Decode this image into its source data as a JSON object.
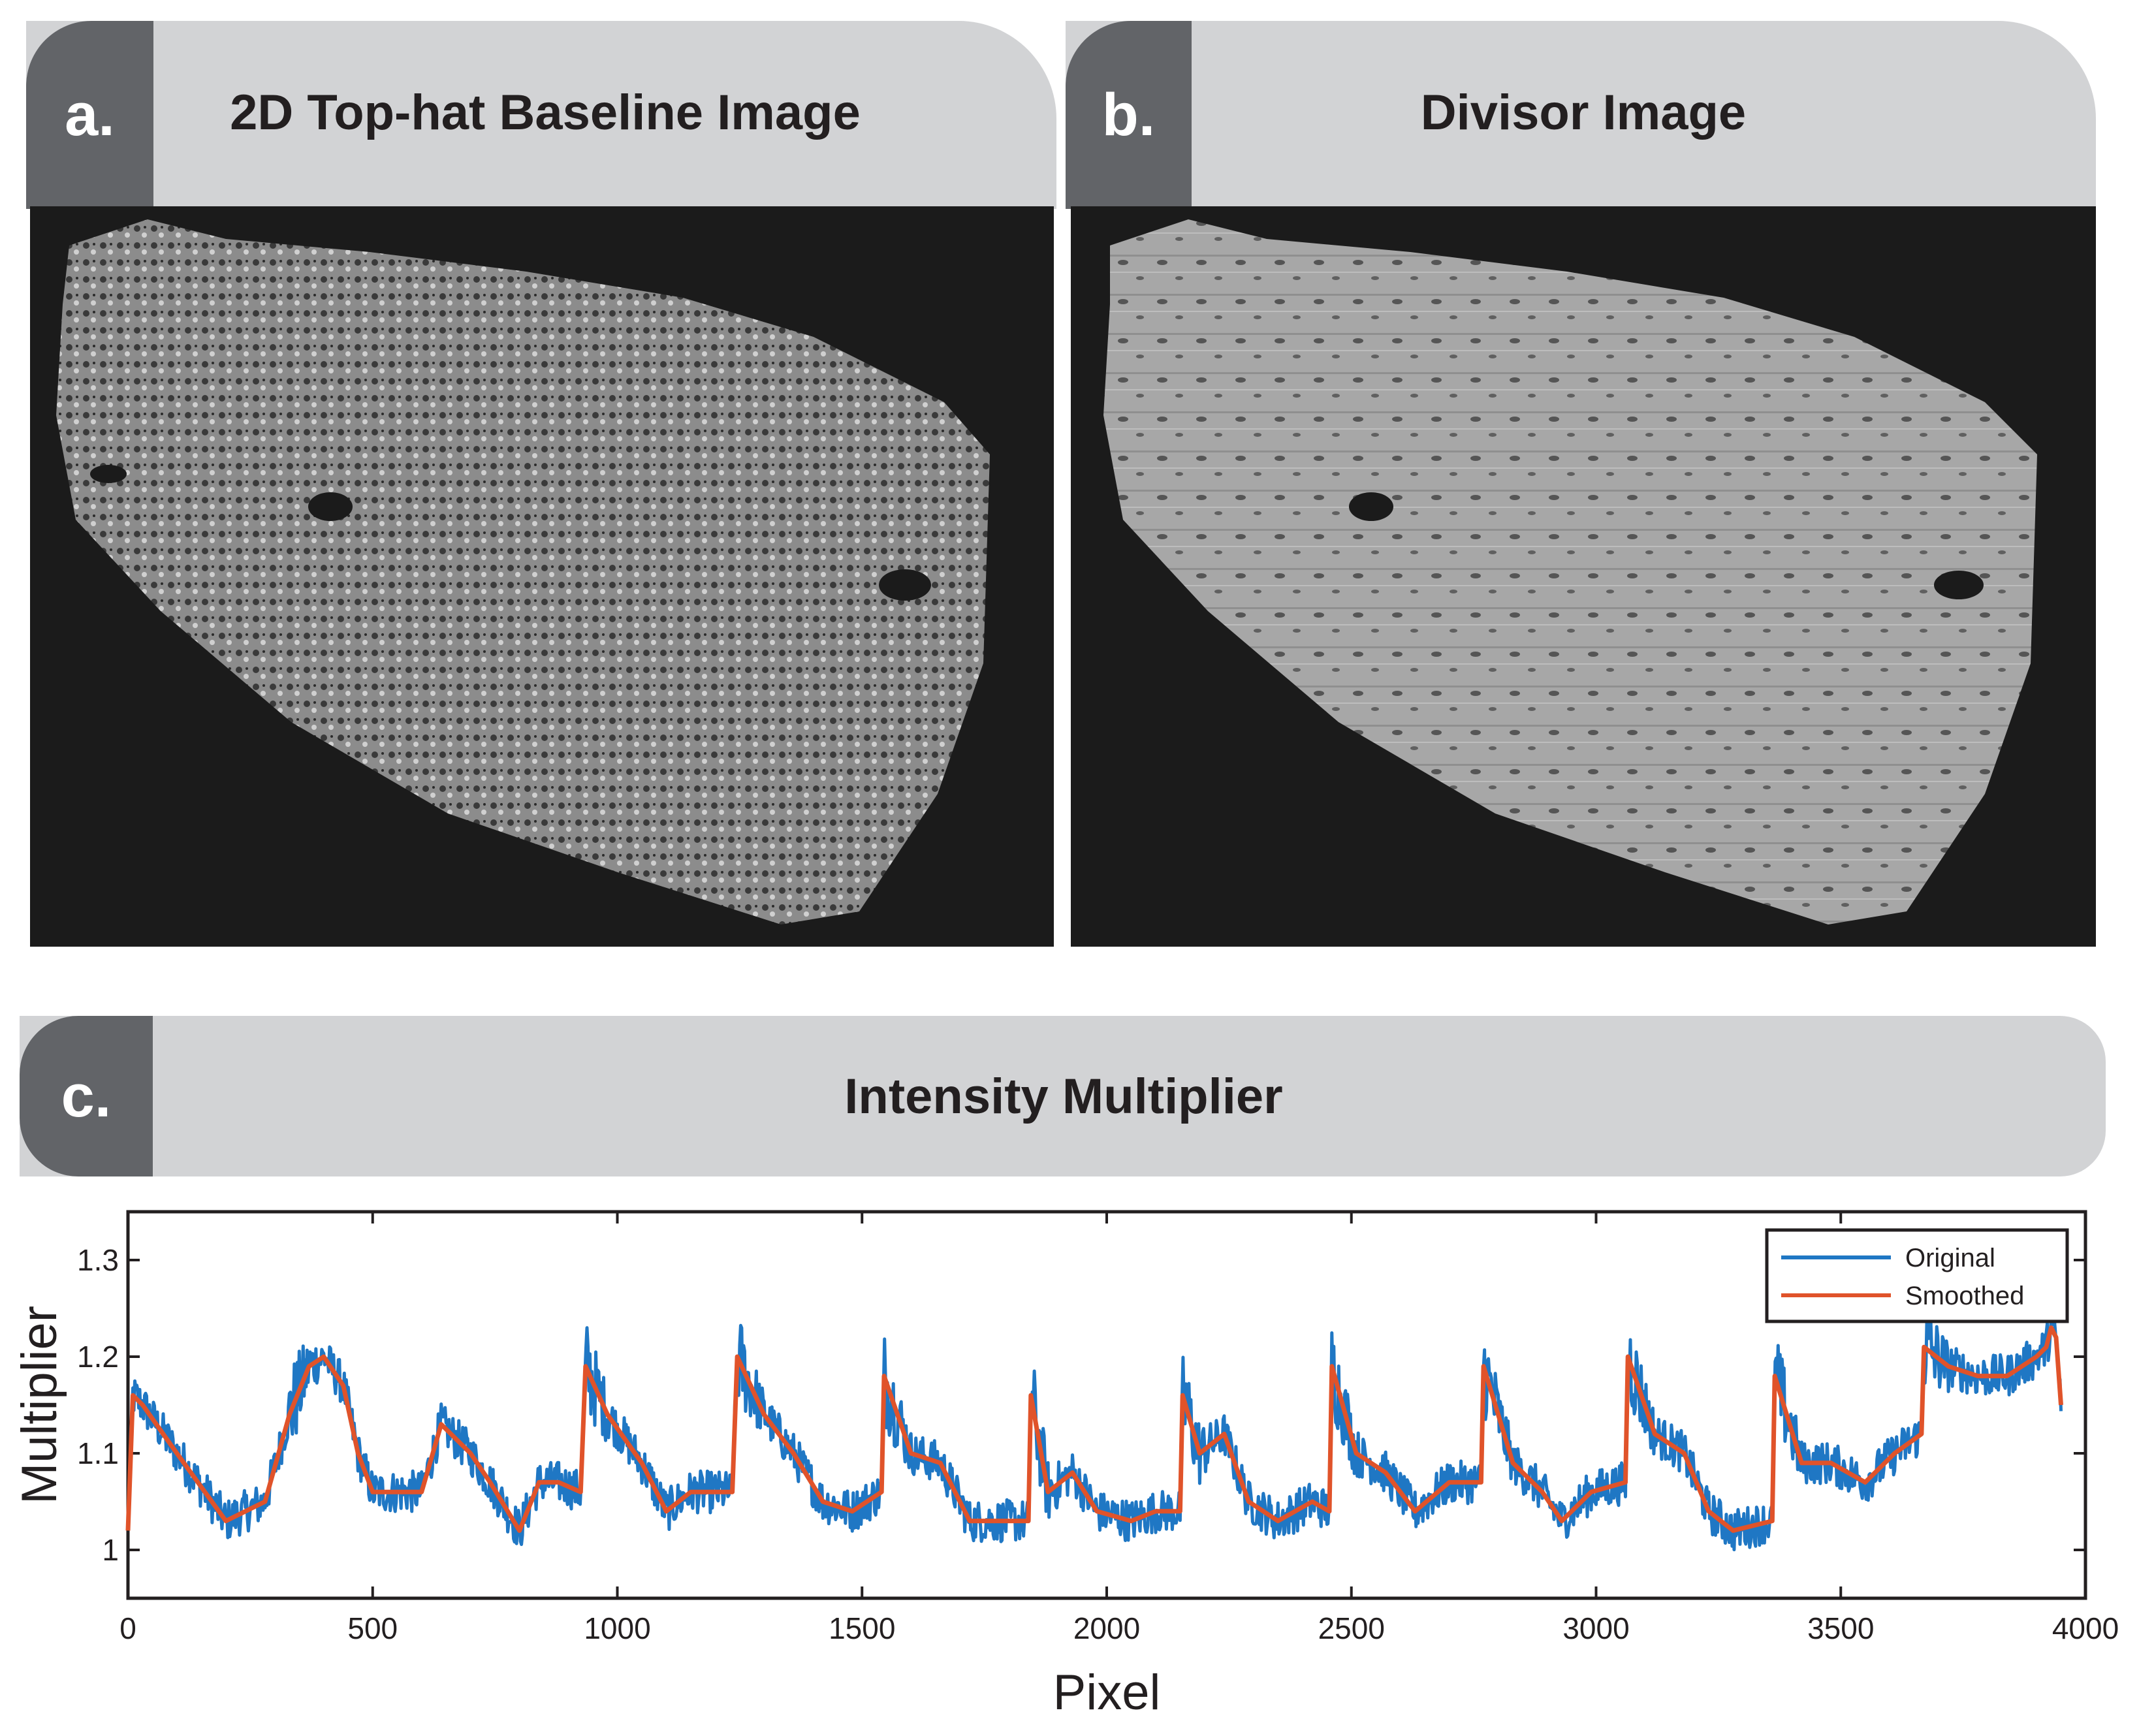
{
  "panels": {
    "a": {
      "label": "a.",
      "title": "2D Top-hat Baseline Image"
    },
    "b": {
      "label": "b.",
      "title": "Divisor Image"
    },
    "c": {
      "label": "c.",
      "title": "Intensity Multiplier"
    }
  },
  "colors": {
    "header_bg": "#d2d3d5",
    "tab_bg": "#626468",
    "image_bg": "#1b1b1b",
    "tissue_a": "#8a8a8a",
    "tissue_b": "#a9a9a9",
    "original_series": "#1f77c4",
    "smoothed_series": "#e0532a"
  },
  "chart_data": {
    "type": "line",
    "title": "Intensity Multiplier",
    "xlabel": "Pixel",
    "ylabel": "Multiplier",
    "xlim": [
      0,
      4000
    ],
    "ylim": [
      0.95,
      1.35
    ],
    "xticks": [
      0,
      500,
      1000,
      1500,
      2000,
      2500,
      3000,
      3500,
      4000
    ],
    "yticks": [
      1,
      1.1,
      1.2,
      1.3
    ],
    "legend": {
      "position": "top-right",
      "entries": [
        "Original",
        "Smoothed"
      ]
    },
    "series": [
      {
        "name": "Smoothed",
        "x": [
          0,
          10,
          30,
          100,
          200,
          280,
          330,
          370,
          400,
          440,
          470,
          500,
          560,
          600,
          640,
          700,
          740,
          800,
          840,
          880,
          925,
          935,
          980,
          1050,
          1100,
          1150,
          1200,
          1235,
          1245,
          1300,
          1360,
          1420,
          1480,
          1540,
          1545,
          1600,
          1660,
          1720,
          1780,
          1840,
          1845,
          1880,
          1930,
          1980,
          2050,
          2100,
          2150,
          2155,
          2190,
          2240,
          2290,
          2350,
          2420,
          2455,
          2460,
          2510,
          2570,
          2630,
          2700,
          2765,
          2770,
          2830,
          2890,
          2930,
          2990,
          3060,
          3065,
          3120,
          3180,
          3230,
          3280,
          3360,
          3365,
          3420,
          3480,
          3550,
          3610,
          3665,
          3670,
          3720,
          3780,
          3840,
          3900,
          3920,
          3930,
          3940,
          3950
        ],
        "values": [
          1.02,
          1.16,
          1.15,
          1.1,
          1.03,
          1.05,
          1.14,
          1.19,
          1.2,
          1.17,
          1.1,
          1.06,
          1.06,
          1.06,
          1.13,
          1.1,
          1.07,
          1.02,
          1.07,
          1.07,
          1.06,
          1.19,
          1.14,
          1.09,
          1.04,
          1.06,
          1.06,
          1.06,
          1.2,
          1.14,
          1.1,
          1.05,
          1.04,
          1.06,
          1.18,
          1.1,
          1.09,
          1.03,
          1.03,
          1.03,
          1.16,
          1.06,
          1.08,
          1.04,
          1.03,
          1.04,
          1.04,
          1.16,
          1.1,
          1.12,
          1.05,
          1.03,
          1.05,
          1.04,
          1.19,
          1.1,
          1.08,
          1.04,
          1.07,
          1.07,
          1.19,
          1.09,
          1.06,
          1.03,
          1.06,
          1.07,
          1.2,
          1.12,
          1.1,
          1.04,
          1.02,
          1.03,
          1.18,
          1.09,
          1.09,
          1.07,
          1.1,
          1.12,
          1.21,
          1.19,
          1.18,
          1.18,
          1.2,
          1.21,
          1.23,
          1.22,
          1.15
        ]
      }
    ]
  }
}
